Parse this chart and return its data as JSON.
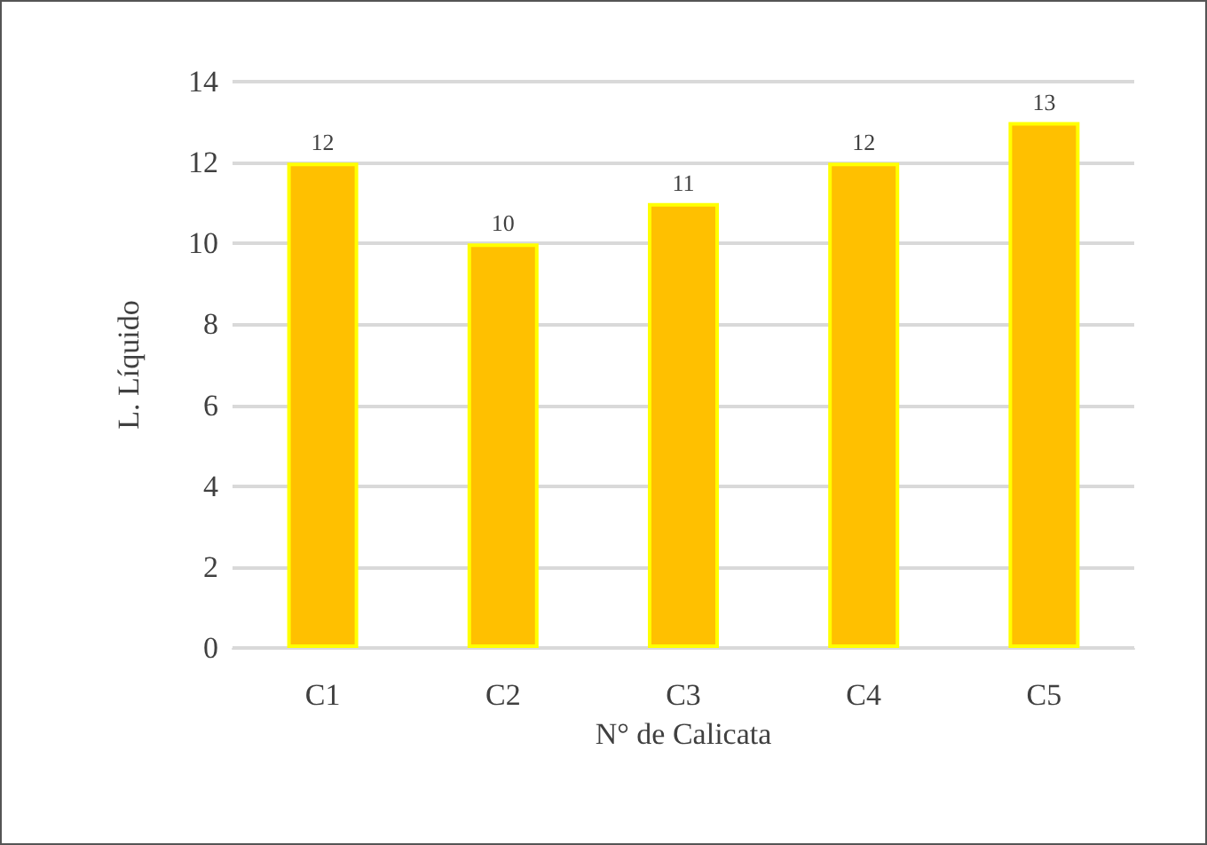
{
  "chart_data": {
    "type": "bar",
    "xlabel": "N° de Calicata",
    "ylabel": "L. Líquido",
    "categories": [
      "C1",
      "C2",
      "C3",
      "C4",
      "C5"
    ],
    "values": [
      12,
      10,
      11,
      12,
      13
    ],
    "color": "#ffc000",
    "ylim": [
      0,
      14
    ],
    "yticks": [
      0,
      2,
      4,
      6,
      8,
      10,
      12,
      14
    ],
    "grid": "y",
    "data_labels": true
  }
}
